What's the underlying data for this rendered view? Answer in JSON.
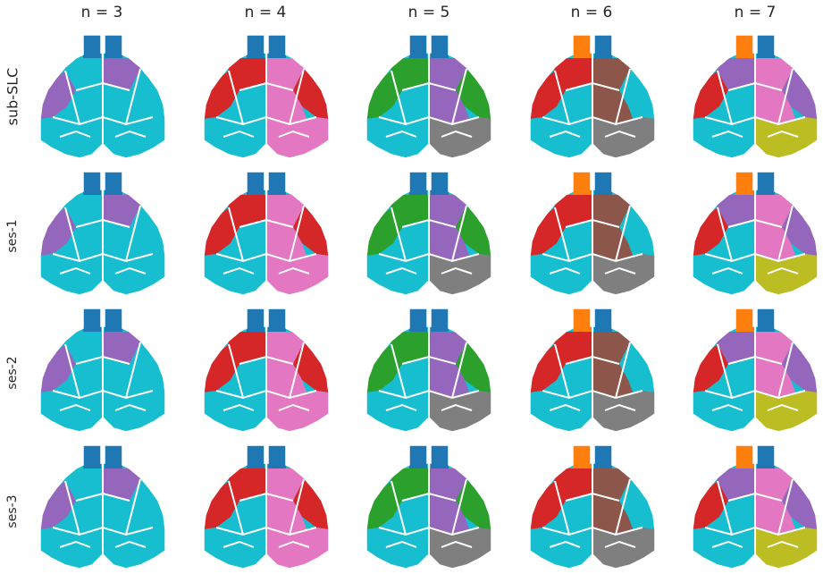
{
  "chart_data": {
    "type": "heatmap",
    "title": "",
    "column_titles": [
      "n = 3",
      "n = 4",
      "n = 5",
      "n = 6",
      "n = 7"
    ],
    "row_labels": [
      "sub-SLC",
      "ses-1",
      "ses-2",
      "ses-3"
    ],
    "palette": {
      "blue": "#1f77b4",
      "orange": "#ff7f0e",
      "green": "#2ca02c",
      "red": "#d62728",
      "purple": "#9467bd",
      "brown": "#8c564b",
      "pink": "#e377c2",
      "gray": "#7f7f7f",
      "olive": "#bcbd22",
      "cyan": "#17becf",
      "outline": "#ffffff"
    },
    "grid_colors": [
      [
        [
          "blue",
          "cyan",
          "purple"
        ],
        [
          "blue",
          "cyan",
          "red",
          "pink"
        ],
        [
          "blue",
          "cyan",
          "green",
          "purple",
          "gray"
        ],
        [
          "blue",
          "cyan",
          "orange",
          "red",
          "brown",
          "gray"
        ],
        [
          "blue",
          "cyan",
          "orange",
          "red",
          "purple",
          "pink",
          "olive"
        ]
      ],
      [
        [
          "blue",
          "cyan",
          "purple"
        ],
        [
          "blue",
          "cyan",
          "red",
          "pink"
        ],
        [
          "blue",
          "cyan",
          "green",
          "purple",
          "gray"
        ],
        [
          "blue",
          "cyan",
          "orange",
          "red",
          "brown",
          "gray"
        ],
        [
          "blue",
          "cyan",
          "orange",
          "red",
          "purple",
          "pink",
          "olive"
        ]
      ],
      [
        [
          "blue",
          "cyan",
          "purple"
        ],
        [
          "blue",
          "cyan",
          "red",
          "pink"
        ],
        [
          "blue",
          "cyan",
          "green",
          "purple",
          "gray"
        ],
        [
          "blue",
          "cyan",
          "orange",
          "red",
          "brown",
          "gray"
        ],
        [
          "blue",
          "cyan",
          "orange",
          "red",
          "purple",
          "pink",
          "olive"
        ]
      ],
      [
        [
          "blue",
          "cyan",
          "purple"
        ],
        [
          "blue",
          "cyan",
          "red",
          "pink"
        ],
        [
          "blue",
          "cyan",
          "green",
          "purple",
          "gray"
        ],
        [
          "blue",
          "cyan",
          "orange",
          "red",
          "brown",
          "gray"
        ],
        [
          "blue",
          "cyan",
          "orange",
          "red",
          "purple",
          "pink",
          "olive"
        ]
      ]
    ]
  }
}
